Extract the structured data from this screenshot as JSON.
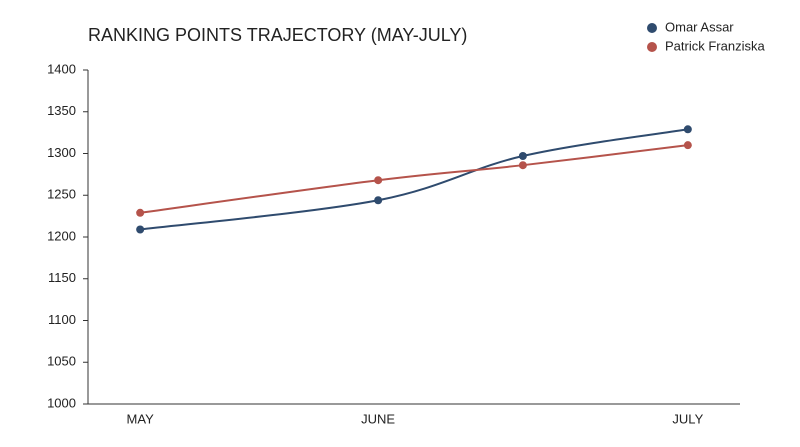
{
  "chart_data": {
    "type": "line",
    "title": "RANKING POINTS TRAJECTORY (MAY-JULY)",
    "categories": [
      "MAY",
      "JUNE",
      null,
      "JULY"
    ],
    "series": [
      {
        "name": "Omar Assar",
        "color": "#2f4b6e",
        "values": [
          1209,
          1244,
          1297,
          1329
        ]
      },
      {
        "name": "Patrick Franziska",
        "color": "#b5534b",
        "values": [
          1229,
          1268,
          1286,
          1310
        ]
      }
    ],
    "ylim": [
      1000,
      1400
    ],
    "yticks": [
      1000,
      1050,
      1100,
      1150,
      1200,
      1250,
      1300,
      1350,
      1400
    ],
    "grid": false,
    "legend": "top-right"
  }
}
